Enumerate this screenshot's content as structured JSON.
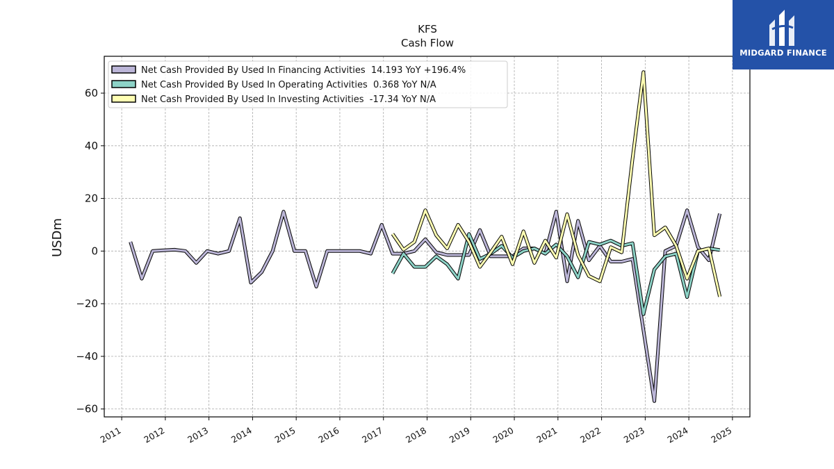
{
  "header": {
    "ticker": "KFS",
    "subtitle": "Cash Flow"
  },
  "logo": {
    "text": "MIDGARD FINANCE",
    "background": "#2452a8"
  },
  "chart_data": {
    "type": "line",
    "title": "KFS",
    "subtitle": "Cash Flow",
    "xlabel": "",
    "ylabel": "USDm",
    "xlim": [
      2010.6,
      2025.4
    ],
    "ylim": [
      -63,
      74
    ],
    "xticks": [
      "2011",
      "2012",
      "2013",
      "2014",
      "2015",
      "2016",
      "2017",
      "2018",
      "2019",
      "2020",
      "2021",
      "2022",
      "2023",
      "2024",
      "2025"
    ],
    "yticks": [
      -60,
      -40,
      -20,
      0,
      20,
      40,
      60
    ],
    "ytick_labels": [
      "−60",
      "−40",
      "−20",
      "0",
      "20",
      "40",
      "60"
    ],
    "grid": true,
    "legend_position": "top-left",
    "series": [
      {
        "name": "Net Cash Provided By Used In Financing Activities  14.193 YoY +196.4%",
        "color": "#bcb6d8",
        "points": [
          [
            2011.2,
            3.5
          ],
          [
            2011.46,
            -10.5
          ],
          [
            2011.71,
            0
          ],
          [
            2011.96,
            0.3
          ],
          [
            2012.21,
            0.5
          ],
          [
            2012.46,
            0
          ],
          [
            2012.71,
            -4.5
          ],
          [
            2012.96,
            0
          ],
          [
            2013.21,
            -1
          ],
          [
            2013.46,
            0
          ],
          [
            2013.71,
            12.5
          ],
          [
            2013.96,
            -12
          ],
          [
            2014.21,
            -8
          ],
          [
            2014.46,
            0
          ],
          [
            2014.71,
            15
          ],
          [
            2014.96,
            0
          ],
          [
            2015.21,
            0
          ],
          [
            2015.46,
            -13.5
          ],
          [
            2015.71,
            0
          ],
          [
            2015.96,
            0
          ],
          [
            2016.21,
            0
          ],
          [
            2016.46,
            0
          ],
          [
            2016.71,
            -1
          ],
          [
            2016.96,
            10
          ],
          [
            2017.21,
            -1
          ],
          [
            2017.46,
            -1
          ],
          [
            2017.71,
            0
          ],
          [
            2017.96,
            4.5
          ],
          [
            2018.21,
            -0.5
          ],
          [
            2018.46,
            -1.5
          ],
          [
            2018.71,
            -1.5
          ],
          [
            2018.96,
            -1.5
          ],
          [
            2019.21,
            8
          ],
          [
            2019.46,
            -2
          ],
          [
            2019.71,
            -2
          ],
          [
            2019.96,
            -2
          ],
          [
            2020.21,
            1
          ],
          [
            2020.46,
            1
          ],
          [
            2020.71,
            -1
          ],
          [
            2020.96,
            15
          ],
          [
            2021.21,
            -11.5
          ],
          [
            2021.46,
            11.5
          ],
          [
            2021.71,
            -3.5
          ],
          [
            2021.96,
            2
          ],
          [
            2022.21,
            -4
          ],
          [
            2022.46,
            -4
          ],
          [
            2022.71,
            -3
          ],
          [
            2022.96,
            -30
          ],
          [
            2023.21,
            -57
          ],
          [
            2023.46,
            0
          ],
          [
            2023.71,
            2
          ],
          [
            2023.96,
            15.5
          ],
          [
            2024.21,
            1.5
          ],
          [
            2024.46,
            -3.5
          ],
          [
            2024.71,
            14.2
          ]
        ]
      },
      {
        "name": "Net Cash Provided By Used In Operating Activities  0.368 YoY N/A",
        "color": "#8dd3c7",
        "points": [
          [
            2017.21,
            -8.5
          ],
          [
            2017.46,
            -1
          ],
          [
            2017.71,
            -6
          ],
          [
            2017.96,
            -6
          ],
          [
            2018.21,
            -2
          ],
          [
            2018.46,
            -5
          ],
          [
            2018.71,
            -10.5
          ],
          [
            2018.96,
            6.5
          ],
          [
            2019.21,
            -3
          ],
          [
            2019.46,
            -1
          ],
          [
            2019.71,
            2
          ],
          [
            2019.96,
            -2.5
          ],
          [
            2020.21,
            0
          ],
          [
            2020.46,
            1
          ],
          [
            2020.71,
            -1
          ],
          [
            2020.96,
            2.5
          ],
          [
            2021.21,
            -2
          ],
          [
            2021.46,
            -10
          ],
          [
            2021.71,
            3.5
          ],
          [
            2021.96,
            2.5
          ],
          [
            2022.21,
            4
          ],
          [
            2022.46,
            2
          ],
          [
            2022.71,
            3
          ],
          [
            2022.96,
            -24
          ],
          [
            2023.21,
            -7
          ],
          [
            2023.46,
            -2
          ],
          [
            2023.71,
            -1
          ],
          [
            2023.96,
            -17.5
          ],
          [
            2024.21,
            0
          ],
          [
            2024.46,
            1
          ],
          [
            2024.71,
            0.4
          ]
        ]
      },
      {
        "name": "Net Cash Provided By Used In Investing Activities  -17.34 YoY N/A",
        "color": "#ffffb3",
        "points": [
          [
            2017.21,
            6.5
          ],
          [
            2017.46,
            0.5
          ],
          [
            2017.71,
            3.5
          ],
          [
            2017.96,
            15.5
          ],
          [
            2018.21,
            6
          ],
          [
            2018.46,
            1
          ],
          [
            2018.71,
            10
          ],
          [
            2018.96,
            3.5
          ],
          [
            2019.21,
            -6
          ],
          [
            2019.46,
            -0.5
          ],
          [
            2019.71,
            5.5
          ],
          [
            2019.96,
            -5
          ],
          [
            2020.21,
            7.5
          ],
          [
            2020.46,
            -4.5
          ],
          [
            2020.71,
            4
          ],
          [
            2020.96,
            -2.5
          ],
          [
            2021.21,
            14
          ],
          [
            2021.46,
            -1.5
          ],
          [
            2021.71,
            -9.5
          ],
          [
            2021.96,
            -11.5
          ],
          [
            2022.21,
            1.5
          ],
          [
            2022.46,
            -0.5
          ],
          [
            2022.71,
            35
          ],
          [
            2022.96,
            68
          ],
          [
            2023.21,
            6
          ],
          [
            2023.46,
            9
          ],
          [
            2023.71,
            2
          ],
          [
            2023.96,
            -10.5
          ],
          [
            2024.21,
            0
          ],
          [
            2024.46,
            1
          ],
          [
            2024.71,
            -17.3
          ]
        ]
      }
    ]
  }
}
